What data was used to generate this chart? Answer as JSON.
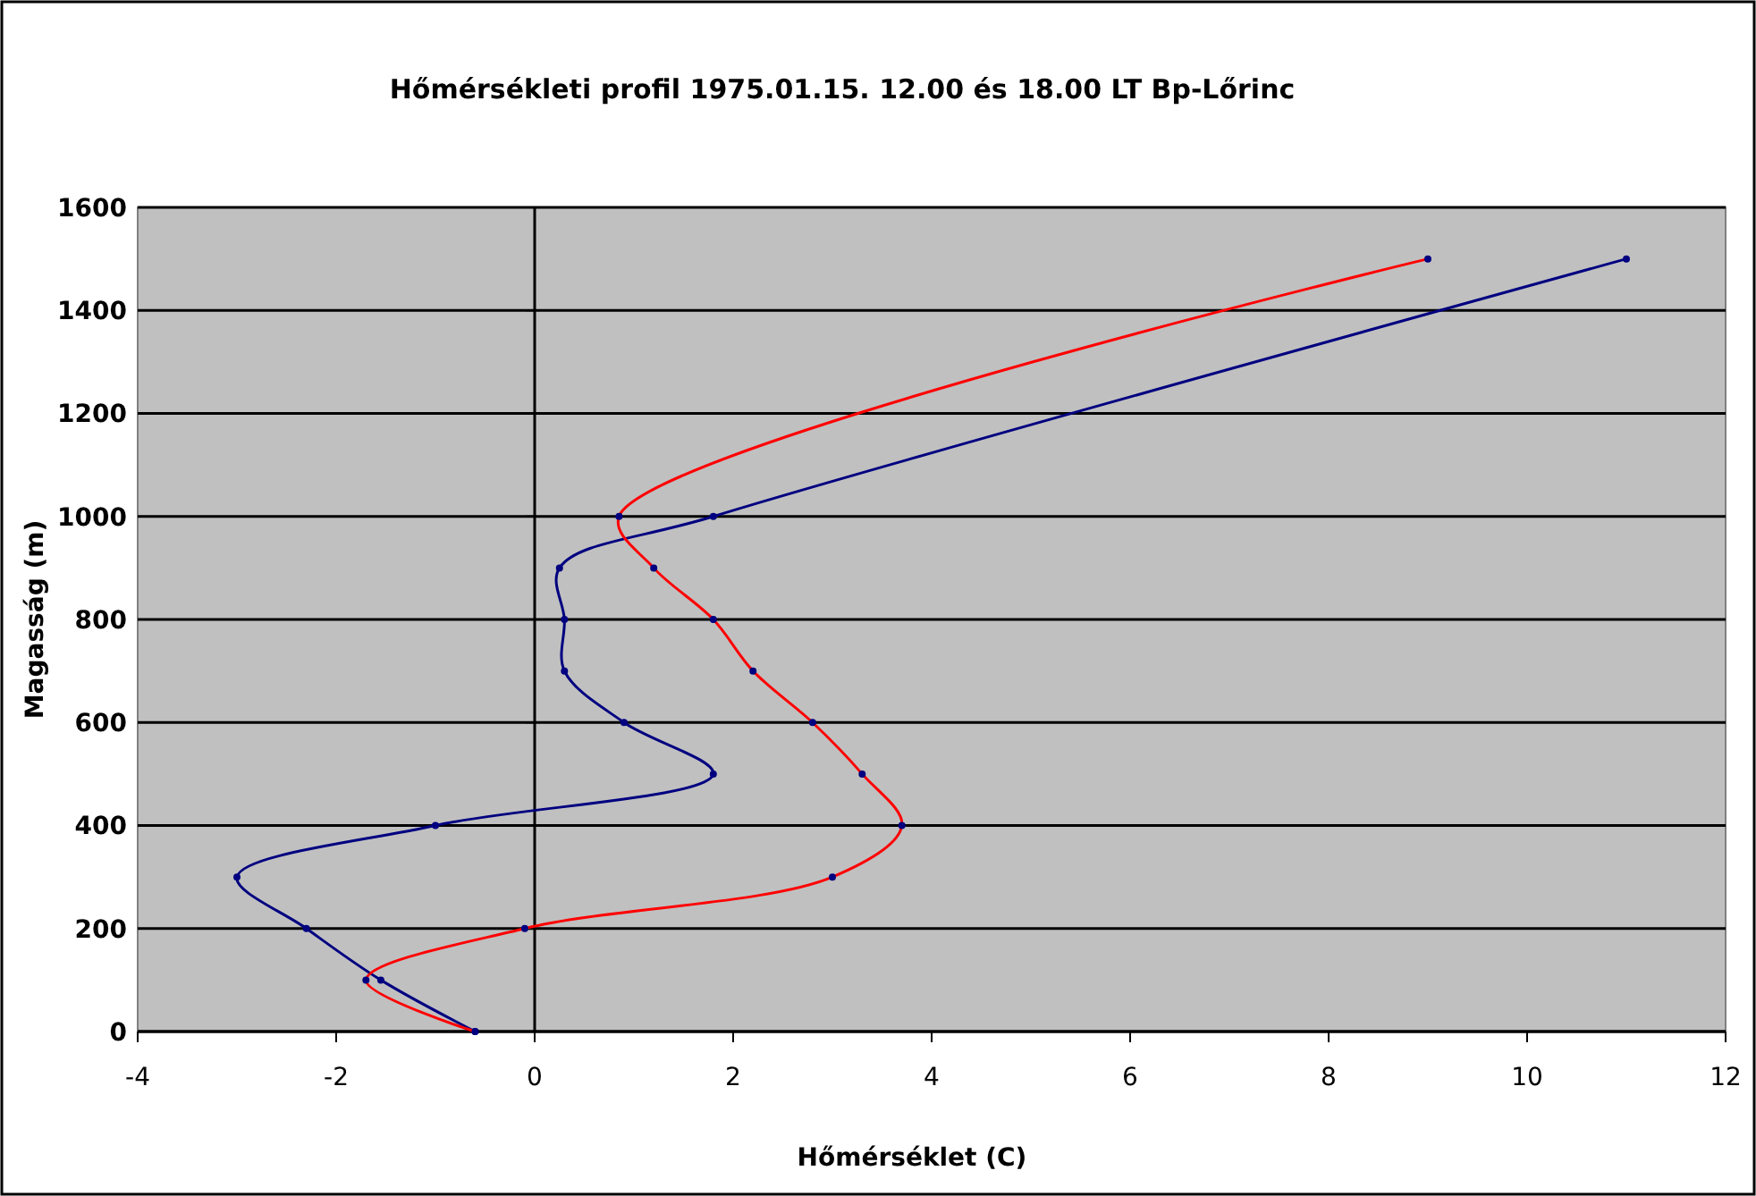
{
  "chart_data": {
    "type": "line",
    "title": "Hőmérsékleti profil 1975.01.15. 12.00 és 18.00 LT Bp-Lőrinc",
    "xlabel": "Hőmérséklet (C)",
    "ylabel": "Magasság (m)",
    "xlim": [
      -4,
      12
    ],
    "xticks": [
      -4,
      -2,
      0,
      2,
      4,
      6,
      8,
      10,
      12
    ],
    "ylim": [
      0,
      1600
    ],
    "yticks": [
      0,
      200,
      400,
      600,
      800,
      1000,
      1200,
      1400,
      1600
    ],
    "grid": "y",
    "ref_lines": [
      {
        "axis": "x",
        "value": 0
      }
    ],
    "marker": "circle",
    "line_style": "solid",
    "series": [
      {
        "color": "#000080",
        "x": [
          -0.6,
          -1.55,
          -2.3,
          -3.0,
          -1.0,
          1.8,
          0.9,
          0.3,
          0.3,
          0.25,
          1.8,
          11
        ],
        "values": [
          0,
          100,
          200,
          300,
          400,
          500,
          600,
          700,
          800,
          900,
          1000,
          1500
        ]
      },
      {
        "color": "#ff0000",
        "x": [
          -0.6,
          -1.7,
          -0.1,
          3.0,
          3.7,
          3.3,
          2.8,
          2.2,
          1.8,
          1.2,
          0.85,
          9
        ],
        "values": [
          0,
          100,
          200,
          300,
          400,
          500,
          600,
          700,
          800,
          900,
          1000,
          1500
        ]
      }
    ]
  }
}
